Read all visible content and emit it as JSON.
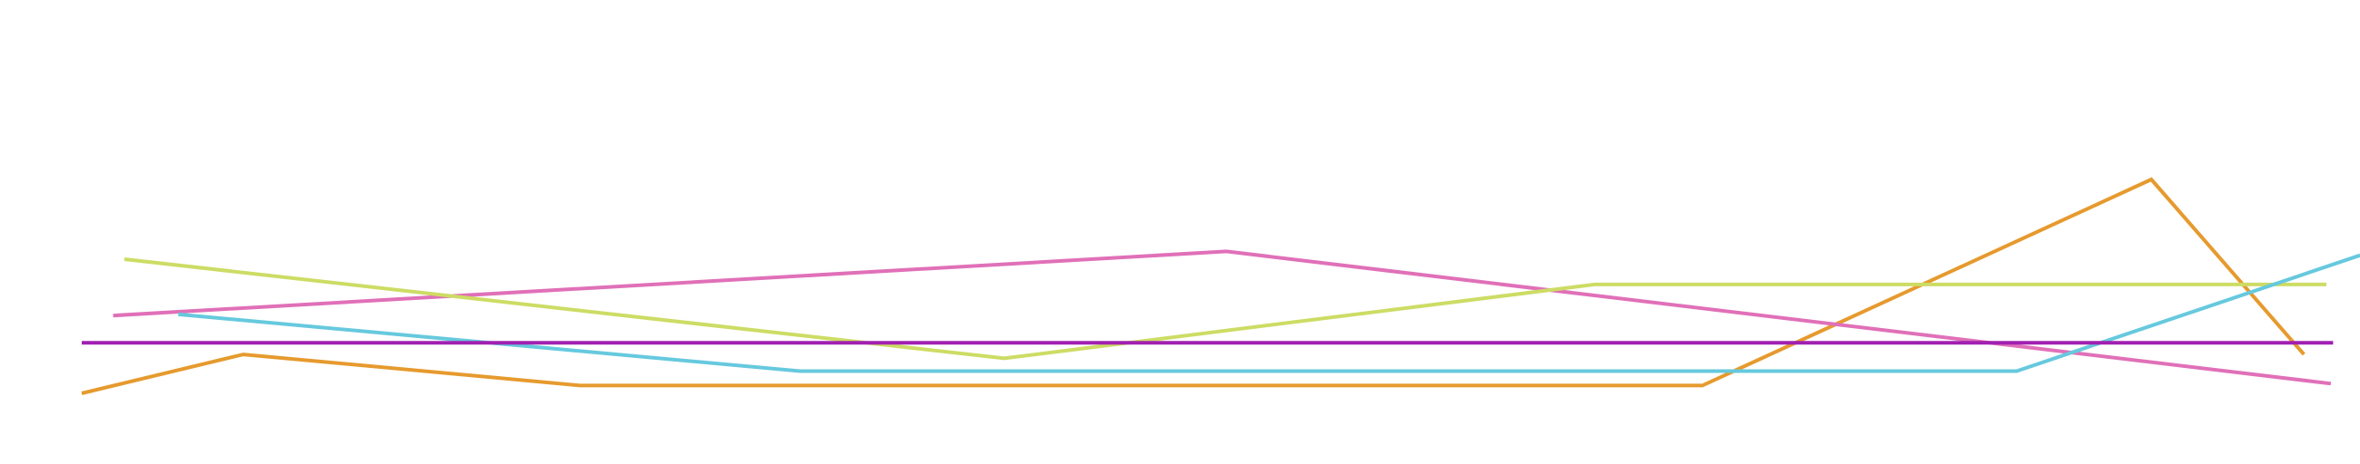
{
  "chart_data": {
    "type": "line",
    "title": "",
    "xlabel": "",
    "ylabel": "",
    "xlim": [
      0,
      100
    ],
    "ylim": [
      0,
      100
    ],
    "grid": false,
    "legend": "none",
    "series": [
      {
        "color": "#e69a2e",
        "points": [
          [
            0,
            0
          ],
          [
            7.2,
            10
          ],
          [
            22.2,
            2
          ],
          [
            72.2,
            2
          ],
          [
            92.2,
            55
          ],
          [
            99,
            10
          ]
        ]
      },
      {
        "color": "#e070b8",
        "points": [
          [
            1.4,
            20
          ],
          [
            51,
            36.5
          ],
          [
            100.2,
            2.5
          ]
        ]
      },
      {
        "color": "#cddc64",
        "points": [
          [
            1.9,
            34.5
          ],
          [
            41.1,
            9
          ],
          [
            67.4,
            28
          ],
          [
            100,
            28
          ]
        ]
      },
      {
        "color": "#66c9de",
        "points": [
          [
            4.3,
            20.3
          ],
          [
            32,
            5.7
          ],
          [
            86.2,
            5.7
          ],
          [
            101.5,
            35.5
          ]
        ]
      },
      {
        "color": "#a020b0",
        "points": [
          [
            0,
            13
          ],
          [
            100.3,
            13
          ]
        ]
      }
    ]
  }
}
